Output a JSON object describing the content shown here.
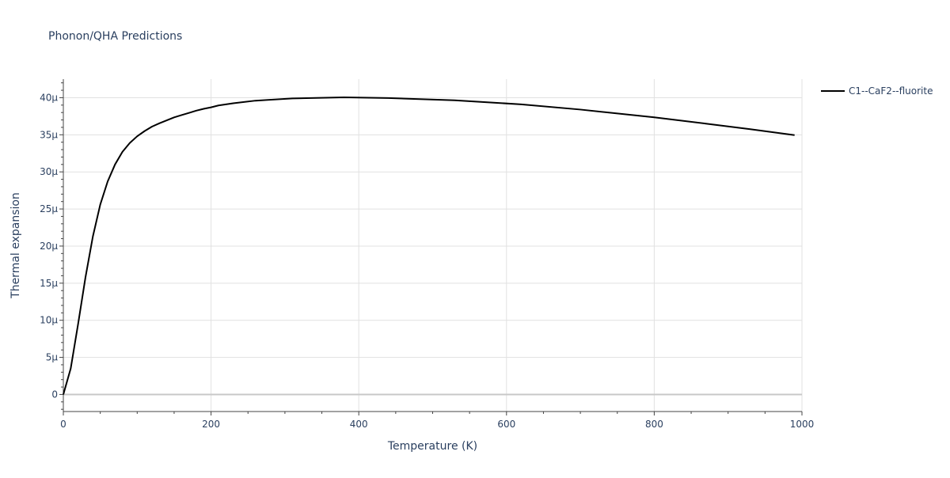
{
  "chart_data": {
    "type": "line",
    "title": "Phonon/QHA Predictions",
    "xlabel": "Temperature (K)",
    "ylabel": "Thermal expansion",
    "xlim": [
      0,
      1000
    ],
    "ylim": [
      -2.3e-06,
      4.25e-05
    ],
    "x_ticks": [
      0,
      200,
      400,
      600,
      800,
      1000
    ],
    "x_tick_labels": [
      "0",
      "200",
      "400",
      "600",
      "800",
      "1000"
    ],
    "y_ticks": [
      0,
      5e-06,
      1e-05,
      1.5e-05,
      2e-05,
      2.5e-05,
      3e-05,
      3.5e-05,
      4e-05
    ],
    "y_tick_labels": [
      "0",
      "5μ",
      "10μ",
      "15μ",
      "20μ",
      "25μ",
      "30μ",
      "35μ",
      "40μ"
    ],
    "grid": true,
    "legend_position": "top-right",
    "series": [
      {
        "name": "C1--CaF2--fluorite",
        "color": "#000000",
        "x": [
          0,
          10,
          20,
          30,
          40,
          50,
          60,
          70,
          80,
          90,
          100,
          110,
          120,
          130,
          140,
          150,
          160,
          170,
          180,
          190,
          200,
          210,
          230,
          260,
          310,
          380,
          440,
          530,
          620,
          700,
          800,
          870,
          930,
          990
        ],
        "y": [
          0,
          3.5e-06,
          9.5e-06,
          1.58e-05,
          2.13e-05,
          2.56e-05,
          2.87e-05,
          3.1e-05,
          3.27e-05,
          3.39e-05,
          3.48e-05,
          3.55e-05,
          3.61e-05,
          3.655e-05,
          3.695e-05,
          3.735e-05,
          3.765e-05,
          3.795e-05,
          3.825e-05,
          3.85e-05,
          3.87e-05,
          3.895e-05,
          3.925e-05,
          3.96e-05,
          3.99e-05,
          4.005e-05,
          3.995e-05,
          3.965e-05,
          3.91e-05,
          3.84e-05,
          3.735e-05,
          3.65e-05,
          3.575e-05,
          3.495e-05
        ]
      }
    ]
  }
}
